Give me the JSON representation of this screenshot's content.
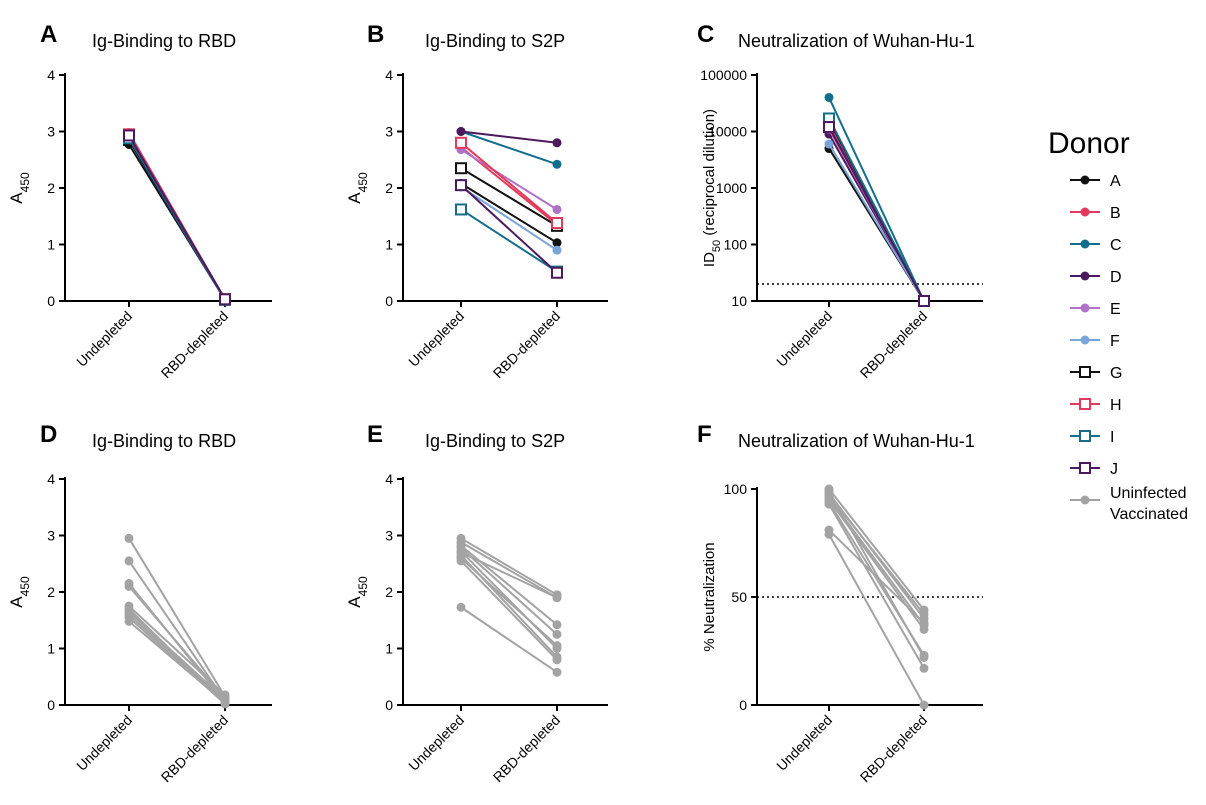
{
  "colors": {
    "A": "#111111",
    "B": "#e23a5a",
    "C": "#136e8c",
    "D": "#4b1a5e",
    "E": "#b072c6",
    "F": "#7aa5d8",
    "G": "#111111",
    "H": "#e23a5a",
    "I": "#136e8c",
    "J": "#4b1a5e",
    "Uninfected": "#a3a3a3"
  },
  "legend": {
    "title": "Donor",
    "items": [
      {
        "label": "A",
        "color": "#111111",
        "marker": "circle"
      },
      {
        "label": "B",
        "color": "#e23a5a",
        "marker": "circle"
      },
      {
        "label": "C",
        "color": "#136e8c",
        "marker": "circle"
      },
      {
        "label": "D",
        "color": "#4b1a5e",
        "marker": "circle"
      },
      {
        "label": "E",
        "color": "#b072c6",
        "marker": "circle"
      },
      {
        "label": "F",
        "color": "#7aa5d8",
        "marker": "circle"
      },
      {
        "label": "G",
        "color": "#111111",
        "marker": "square-open"
      },
      {
        "label": "H",
        "color": "#e23a5a",
        "marker": "square-open"
      },
      {
        "label": "I",
        "color": "#136e8c",
        "marker": "square-open"
      },
      {
        "label": "J",
        "color": "#4b1a5e",
        "marker": "square-open"
      },
      {
        "label": "Uninfected",
        "label2": "Vaccinated",
        "color": "#a3a3a3",
        "marker": "circle"
      }
    ]
  },
  "chart_data": [
    {
      "panel": "A",
      "type": "line",
      "title": "Ig-Binding to RBD",
      "ylabel": "A450",
      "ylim": [
        0,
        4
      ],
      "scale": "linear",
      "yticks": [
        "0",
        "1",
        "2",
        "3",
        "4"
      ],
      "categories": [
        "Undepleted",
        "RBD-depleted"
      ],
      "series": [
        {
          "name": "A",
          "values": [
            2.77,
            0.02
          ]
        },
        {
          "name": "B",
          "values": [
            2.98,
            0.03
          ]
        },
        {
          "name": "C",
          "values": [
            2.9,
            0.02
          ]
        },
        {
          "name": "D",
          "values": [
            2.9,
            0.03
          ]
        },
        {
          "name": "E",
          "values": [
            2.95,
            0.03
          ]
        },
        {
          "name": "F",
          "values": [
            2.85,
            0.02
          ]
        },
        {
          "name": "G",
          "values": [
            2.85,
            0.03
          ]
        },
        {
          "name": "H",
          "values": [
            2.95,
            0.03
          ]
        },
        {
          "name": "I",
          "values": [
            2.88,
            0.02
          ]
        },
        {
          "name": "J",
          "values": [
            2.93,
            0.03
          ]
        }
      ]
    },
    {
      "panel": "B",
      "type": "line",
      "title": "Ig-Binding to S2P",
      "ylabel": "A450",
      "ylim": [
        0,
        4
      ],
      "scale": "linear",
      "yticks": [
        "0",
        "1",
        "2",
        "3",
        "4"
      ],
      "categories": [
        "Undepleted",
        "RBD-depleted"
      ],
      "series": [
        {
          "name": "A",
          "values": [
            2.08,
            1.03
          ]
        },
        {
          "name": "B",
          "values": [
            2.72,
            1.35
          ]
        },
        {
          "name": "C",
          "values": [
            3.0,
            2.42
          ]
        },
        {
          "name": "D",
          "values": [
            3.0,
            2.8
          ]
        },
        {
          "name": "E",
          "values": [
            2.68,
            1.62
          ]
        },
        {
          "name": "F",
          "values": [
            2.02,
            0.9
          ]
        },
        {
          "name": "G",
          "values": [
            2.35,
            1.33
          ]
        },
        {
          "name": "H",
          "values": [
            2.8,
            1.38
          ]
        },
        {
          "name": "I",
          "values": [
            1.62,
            0.52
          ]
        },
        {
          "name": "J",
          "values": [
            2.05,
            0.5
          ]
        }
      ]
    },
    {
      "panel": "C",
      "type": "line",
      "title": "Neutralization of Wuhan-Hu-1",
      "ylabel": "ID50 (reciprocal dilution)",
      "ylim": [
        10,
        100000
      ],
      "scale": "log",
      "yticks": [
        "10",
        "100",
        "1000",
        "10000",
        "100000"
      ],
      "reference_line": 20,
      "categories": [
        "Undepleted",
        "RBD-depleted"
      ],
      "series": [
        {
          "name": "A",
          "values": [
            5000,
            10
          ]
        },
        {
          "name": "B",
          "values": [
            14000,
            10
          ]
        },
        {
          "name": "C",
          "values": [
            40000,
            10
          ]
        },
        {
          "name": "D",
          "values": [
            9000,
            10
          ]
        },
        {
          "name": "E",
          "values": [
            11000,
            10
          ]
        },
        {
          "name": "F",
          "values": [
            6000,
            10
          ]
        },
        {
          "name": "G",
          "values": [
            16000,
            10
          ]
        },
        {
          "name": "H",
          "values": [
            12000,
            10
          ]
        },
        {
          "name": "I",
          "values": [
            17000,
            10
          ]
        },
        {
          "name": "J",
          "values": [
            12000,
            10
          ]
        }
      ]
    },
    {
      "panel": "D",
      "type": "line",
      "title": "Ig-Binding to RBD",
      "ylabel": "A450",
      "ylim": [
        0,
        4
      ],
      "scale": "linear",
      "yticks": [
        "0",
        "1",
        "2",
        "3",
        "4"
      ],
      "categories": [
        "Undepleted",
        "RBD-depleted"
      ],
      "series": [
        {
          "values": [
            2.95,
            0.15
          ]
        },
        {
          "values": [
            2.55,
            0.08
          ]
        },
        {
          "values": [
            2.15,
            0.05
          ]
        },
        {
          "values": [
            2.1,
            0.12
          ]
        },
        {
          "values": [
            1.75,
            0.18
          ]
        },
        {
          "values": [
            1.7,
            0.03
          ]
        },
        {
          "values": [
            1.65,
            0.1
          ]
        },
        {
          "values": [
            1.6,
            0.06
          ]
        },
        {
          "values": [
            1.55,
            0.02
          ]
        },
        {
          "values": [
            1.48,
            0.04
          ]
        }
      ]
    },
    {
      "panel": "E",
      "type": "line",
      "title": "Ig-Binding to S2P",
      "ylabel": "A450",
      "ylim": [
        0,
        4
      ],
      "scale": "linear",
      "yticks": [
        "0",
        "1",
        "2",
        "3",
        "4"
      ],
      "categories": [
        "Undepleted",
        "RBD-depleted"
      ],
      "series": [
        {
          "values": [
            2.95,
            1.95
          ]
        },
        {
          "values": [
            2.88,
            1.9
          ]
        },
        {
          "values": [
            2.82,
            1.42
          ]
        },
        {
          "values": [
            2.78,
            1.25
          ]
        },
        {
          "values": [
            2.72,
            1.0
          ]
        },
        {
          "values": [
            2.65,
            0.85
          ]
        },
        {
          "values": [
            2.6,
            1.05
          ]
        },
        {
          "values": [
            2.55,
            0.8
          ]
        },
        {
          "values": [
            1.73,
            0.58
          ]
        },
        {
          "values": [
            2.7,
            1.9
          ]
        }
      ]
    },
    {
      "panel": "F",
      "type": "line",
      "title": "Neutralization of Wuhan-Hu-1",
      "ylabel": "% Neutralization",
      "ylim": [
        0,
        100
      ],
      "scale": "linear",
      "yticks": [
        "0",
        "50",
        "100"
      ],
      "reference_line": 50,
      "categories": [
        "Undepleted",
        "RBD-depleted"
      ],
      "series": [
        {
          "values": [
            100,
            44
          ]
        },
        {
          "values": [
            98,
            40
          ]
        },
        {
          "values": [
            96,
            37
          ]
        },
        {
          "values": [
            95,
            35
          ]
        },
        {
          "values": [
            94,
            23
          ]
        },
        {
          "values": [
            93,
            17
          ]
        },
        {
          "values": [
            97,
            42
          ]
        },
        {
          "values": [
            81,
            38
          ]
        },
        {
          "values": [
            79,
            0
          ]
        },
        {
          "values": [
            99,
            22
          ]
        }
      ]
    }
  ]
}
